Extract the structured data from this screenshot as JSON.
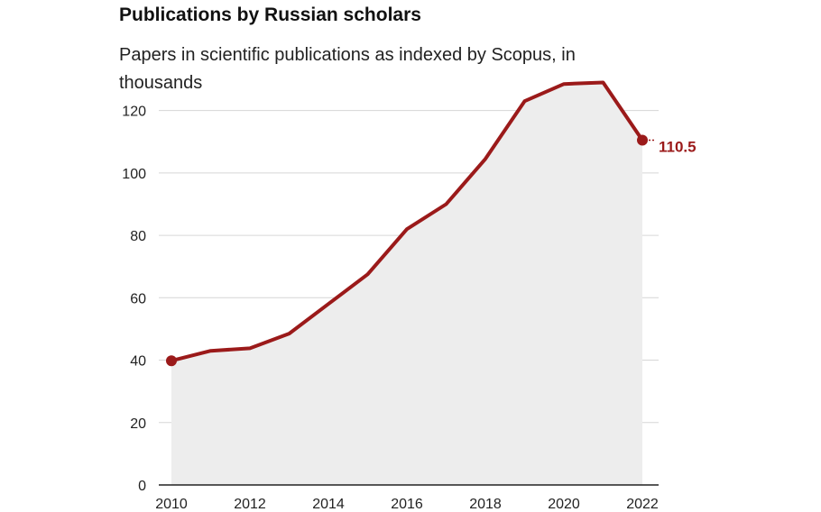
{
  "title": "Publications by Russian scholars",
  "subtitle": "Papers in scientific publications as indexed by Scopus, in thousands",
  "colors": {
    "line": "#9b1a1a",
    "area": "#ededed",
    "grid": "#d6d6d6",
    "axis": "#222222"
  },
  "chart_data": {
    "type": "area",
    "title": "Publications by Russian scholars",
    "subtitle": "Papers in scientific publications as indexed by Scopus, in thousands",
    "xlabel": "",
    "ylabel": "",
    "x": [
      2010,
      2011,
      2012,
      2013,
      2014,
      2015,
      2016,
      2017,
      2018,
      2019,
      2020,
      2021,
      2022
    ],
    "series": [
      {
        "values": [
          39.8,
          43,
          43.8,
          48.5,
          58,
          67.5,
          82,
          90,
          104.5,
          123,
          128.5,
          129,
          110.5
        ]
      }
    ],
    "xlim": [
      2010,
      2022
    ],
    "ylim": [
      0,
      130
    ],
    "x_ticks": [
      2010,
      2012,
      2014,
      2016,
      2018,
      2020,
      2022
    ],
    "y_ticks": [
      0,
      20,
      40,
      60,
      80,
      100,
      120
    ],
    "grid": "horizontal",
    "annotations": [
      {
        "x": 2022,
        "y": 110.5,
        "text": "110.5"
      }
    ]
  }
}
